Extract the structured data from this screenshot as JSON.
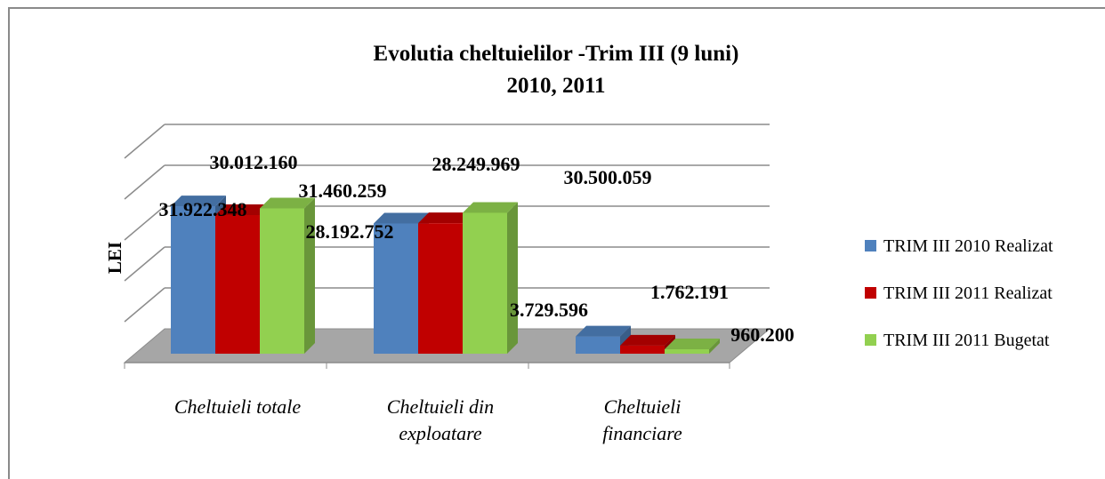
{
  "chart_data": {
    "type": "bar3d",
    "title": "Evolutia cheltuielilor -Trim III (9 luni)",
    "subtitle": "2010, 2011",
    "y_label": "LEI",
    "categories": [
      "Cheltuieli totale",
      "Cheltuieli din exploatare",
      "Cheltuieli financiare"
    ],
    "series": [
      {
        "name": "TRIM III 2010 Realizat",
        "color": "#4f81bd",
        "values": [
          31922348,
          28192752,
          3729596
        ],
        "value_labels": [
          "31.922.348",
          "28.192.752",
          "3.729.596"
        ]
      },
      {
        "name": "TRIM III 2011 Realizat",
        "color": "#c00000",
        "values": [
          30012160,
          28249969,
          1762191
        ],
        "value_labels": [
          "30.012.160",
          "28.249.969",
          "1.762.191"
        ]
      },
      {
        "name": "TRIM III 2011 Bugetat",
        "color": "#92d050",
        "values": [
          31460259,
          30500059,
          960200
        ],
        "value_labels": [
          "31.460.259",
          "30.500.059",
          "960.200"
        ]
      }
    ],
    "ylim": [
      0,
      50000000
    ],
    "yticks": [
      0,
      10000000,
      20000000,
      30000000,
      40000000,
      50000000
    ],
    "grid": true,
    "legend": "right"
  }
}
